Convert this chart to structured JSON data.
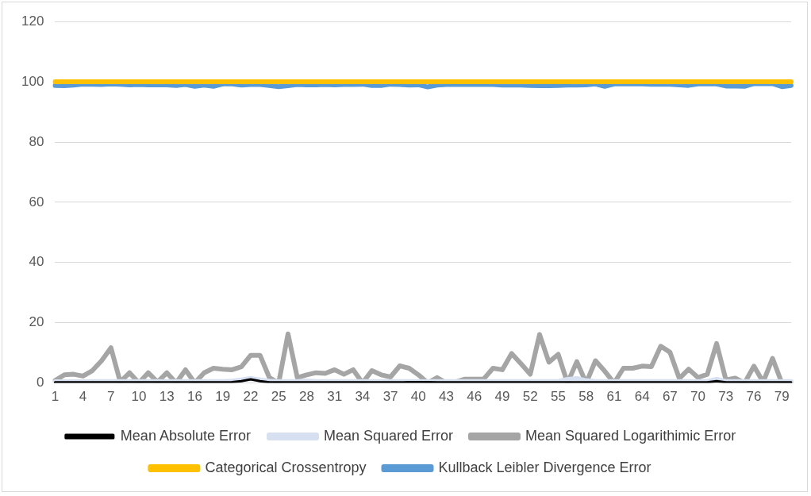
{
  "chart_data": {
    "type": "line",
    "categories": [
      "1",
      null,
      null,
      "4",
      null,
      null,
      "7",
      null,
      null,
      "10",
      null,
      null,
      "13",
      null,
      null,
      "16",
      null,
      null,
      "19",
      null,
      null,
      "22",
      null,
      null,
      "25",
      null,
      null,
      "28",
      null,
      null,
      "31",
      null,
      null,
      "34",
      null,
      null,
      "37",
      null,
      null,
      "40",
      null,
      null,
      "43",
      null,
      null,
      "46",
      null,
      null,
      "49",
      null,
      null,
      "52",
      null,
      null,
      "55",
      null,
      null,
      "58",
      null,
      null,
      "61",
      null,
      null,
      "64",
      null,
      null,
      "67",
      null,
      null,
      "70",
      null,
      null,
      "73",
      null,
      null,
      "76",
      null,
      null,
      "79",
      null
    ],
    "series": [
      {
        "name": "Mean Absolute Error",
        "color": "#000000",
        "values": [
          0.2,
          0.2,
          0.2,
          0.2,
          0.2,
          0.2,
          0.2,
          0.2,
          0.2,
          0.2,
          0.2,
          0.2,
          0.2,
          0.2,
          0.2,
          0.2,
          0.2,
          0.2,
          0.2,
          0.3,
          0.6,
          1.2,
          0.6,
          0.2,
          0.2,
          0.2,
          0.2,
          0.2,
          0.2,
          0.2,
          0.2,
          0.2,
          0.2,
          0.2,
          0.2,
          0.2,
          0.2,
          0.2,
          0.3,
          0.3,
          0.3,
          0.2,
          0.2,
          0.2,
          0.2,
          0.2,
          0.2,
          0.2,
          0.2,
          0.2,
          0.2,
          0.2,
          0.2,
          0.2,
          0.2,
          0.2,
          0.2,
          0.2,
          0.2,
          0.2,
          0.2,
          0.2,
          0.2,
          0.2,
          0.2,
          0.2,
          0.2,
          0.2,
          0.2,
          0.2,
          0.2,
          0.6,
          0.2,
          0.2,
          0.2,
          0.2,
          0.2,
          0.2,
          0.2,
          0.2
        ]
      },
      {
        "name": "Mean Squared Error",
        "color": "#d6e0f0",
        "values": [
          0.4,
          0.4,
          0.4,
          0.4,
          0.5,
          0.5,
          0.5,
          0.5,
          0.5,
          0.5,
          0.5,
          0.5,
          0.5,
          0.5,
          0.5,
          0.5,
          0.5,
          0.5,
          0.5,
          0.6,
          1.0,
          1.5,
          1.0,
          0.6,
          0.5,
          0.5,
          0.5,
          0.7,
          0.5,
          0.5,
          0.5,
          0.5,
          0.5,
          0.5,
          0.5,
          0.5,
          0.5,
          0.5,
          0.5,
          0.5,
          0.5,
          0.5,
          0.5,
          0.5,
          0.5,
          0.5,
          0.5,
          0.5,
          0.5,
          0.5,
          0.5,
          0.5,
          0.5,
          0.5,
          0.5,
          1.2,
          1.5,
          0.8,
          0.5,
          0.5,
          0.5,
          0.5,
          0.5,
          0.5,
          0.5,
          0.5,
          0.5,
          0.5,
          0.5,
          0.5,
          0.5,
          1.2,
          0.5,
          0.5,
          0.5,
          0.5,
          0.5,
          0.5,
          0.5,
          0.5
        ]
      },
      {
        "name": "Mean Squared Logarithimic Error",
        "color": "#a5a5a5",
        "values": [
          0.8,
          2.7,
          2.9,
          2.3,
          4.1,
          7.4,
          11.7,
          0.3,
          3.4,
          0,
          3.4,
          0.3,
          3.4,
          0,
          4.4,
          0,
          3.4,
          4.9,
          4.6,
          4.4,
          5.4,
          9.2,
          9.2,
          1.8,
          0,
          16.3,
          1.8,
          2.7,
          3.4,
          3.2,
          4.4,
          2.9,
          4.4,
          0,
          4.1,
          2.7,
          2.0,
          5.7,
          4.9,
          2.7,
          0,
          1.8,
          0,
          0.3,
          1.3,
          1.3,
          1.3,
          4.9,
          4.4,
          9.8,
          6.4,
          2.9,
          16.1,
          6.9,
          9.5,
          0,
          7.1,
          0,
          7.4,
          3.9,
          0,
          4.9,
          4.9,
          5.6,
          5.4,
          12.2,
          10.2,
          1.5,
          4.6,
          1.8,
          2.9,
          13.1,
          1.0,
          1.6,
          0,
          5.6,
          0.3,
          8.2,
          0,
          0
        ]
      },
      {
        "name": "Categorical Crossentropy",
        "color": "#ffc000",
        "values": [
          100,
          100,
          100,
          100,
          100,
          100,
          100,
          100,
          100,
          100,
          100,
          100,
          100,
          100,
          100,
          100,
          100,
          100,
          100,
          100,
          100,
          100,
          100,
          100,
          100,
          100,
          100,
          100,
          100,
          100,
          100,
          100,
          100,
          100,
          100,
          100,
          100,
          100,
          100,
          100,
          100,
          100,
          100,
          100,
          100,
          100,
          100,
          100,
          100,
          100,
          100,
          100,
          100,
          100,
          100,
          100,
          100,
          100,
          100,
          100,
          100,
          100,
          100,
          100,
          100,
          100,
          100,
          100,
          100,
          100,
          100,
          100,
          100,
          100,
          100,
          100,
          100,
          100,
          100,
          100
        ]
      },
      {
        "name": "Kullback Leibler Divergence Error",
        "color": "#5b9bd5",
        "values": [
          98.8,
          98.7,
          98.9,
          99.2,
          99.2,
          99.1,
          99.3,
          99.2,
          99.0,
          99.1,
          99.0,
          99.0,
          99.0,
          98.8,
          99.1,
          98.5,
          98.9,
          98.5,
          99.3,
          99.3,
          98.9,
          99.1,
          99.1,
          98.8,
          98.4,
          98.7,
          99.1,
          99.0,
          99.0,
          99.1,
          99.0,
          99.1,
          99.1,
          99.2,
          98.8,
          98.8,
          99.2,
          99.1,
          98.9,
          99.0,
          98.3,
          98.9,
          99.1,
          99.1,
          99.1,
          99.1,
          99.1,
          99.1,
          98.9,
          98.9,
          98.9,
          98.8,
          98.7,
          98.7,
          98.8,
          98.9,
          98.9,
          99.0,
          99.3,
          98.5,
          99.3,
          99.3,
          99.3,
          99.3,
          99.2,
          99.2,
          99.2,
          99.0,
          98.8,
          99.3,
          99.3,
          99.3,
          98.6,
          98.6,
          98.5,
          99.4,
          99.4,
          99.4,
          98.4,
          98.8
        ]
      }
    ],
    "ylim": [
      0,
      120
    ],
    "yticks": [
      0,
      20,
      40,
      60,
      80,
      100,
      120
    ],
    "grid": "y",
    "legend": "bottom"
  }
}
